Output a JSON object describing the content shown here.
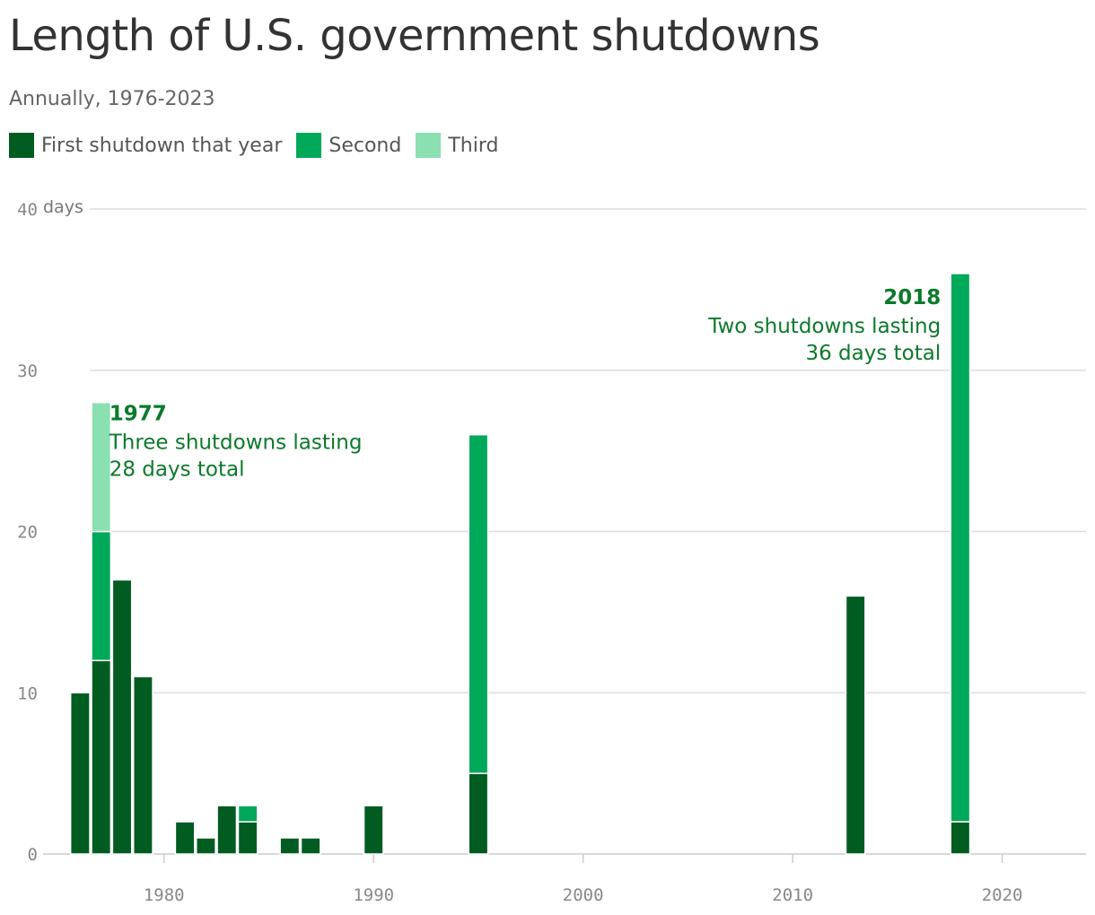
{
  "title": "Length of U.S. government shutdowns",
  "subtitle": "Annually, 1976-2023",
  "legend": [
    {
      "label": "First shutdown that year",
      "color": "#005c21"
    },
    {
      "label": "Second",
      "color": "#00a859"
    },
    {
      "label": "Third",
      "color": "#8ae0b0"
    }
  ],
  "chart_data": {
    "type": "bar",
    "stacked": true,
    "x_domain": [
      1975,
      2024
    ],
    "ylim": [
      0,
      40
    ],
    "yticks": [
      0,
      10,
      20,
      30,
      40
    ],
    "xticks": [
      1980,
      1990,
      2000,
      2010,
      2020
    ],
    "y_unit_label": "days",
    "grid": true,
    "legend_placement": "top-left",
    "series": [
      {
        "name": "First shutdown that year",
        "color": "#005c21",
        "points": [
          {
            "x": 1976,
            "y": 10
          },
          {
            "x": 1977,
            "y": 12
          },
          {
            "x": 1978,
            "y": 17
          },
          {
            "x": 1979,
            "y": 11
          },
          {
            "x": 1981,
            "y": 2
          },
          {
            "x": 1982,
            "y": 1
          },
          {
            "x": 1983,
            "y": 3
          },
          {
            "x": 1984,
            "y": 2
          },
          {
            "x": 1986,
            "y": 1
          },
          {
            "x": 1987,
            "y": 1
          },
          {
            "x": 1990,
            "y": 3
          },
          {
            "x": 1995,
            "y": 5
          },
          {
            "x": 2013,
            "y": 16
          },
          {
            "x": 2018,
            "y": 2
          }
        ]
      },
      {
        "name": "Second",
        "color": "#00a859",
        "points": [
          {
            "x": 1977,
            "y": 8
          },
          {
            "x": 1984,
            "y": 1
          },
          {
            "x": 1995,
            "y": 21
          },
          {
            "x": 2018,
            "y": 34
          }
        ]
      },
      {
        "name": "Third",
        "color": "#8ae0b0",
        "points": [
          {
            "x": 1977,
            "y": 8
          }
        ]
      }
    ],
    "annotations": [
      {
        "year_label": "1977",
        "lines": [
          "Three shutdowns lasting",
          "28 days total"
        ],
        "anchor": "left"
      },
      {
        "year_label": "2018",
        "lines": [
          "Two shutdowns lasting",
          "36 days total"
        ],
        "anchor": "right"
      }
    ]
  }
}
